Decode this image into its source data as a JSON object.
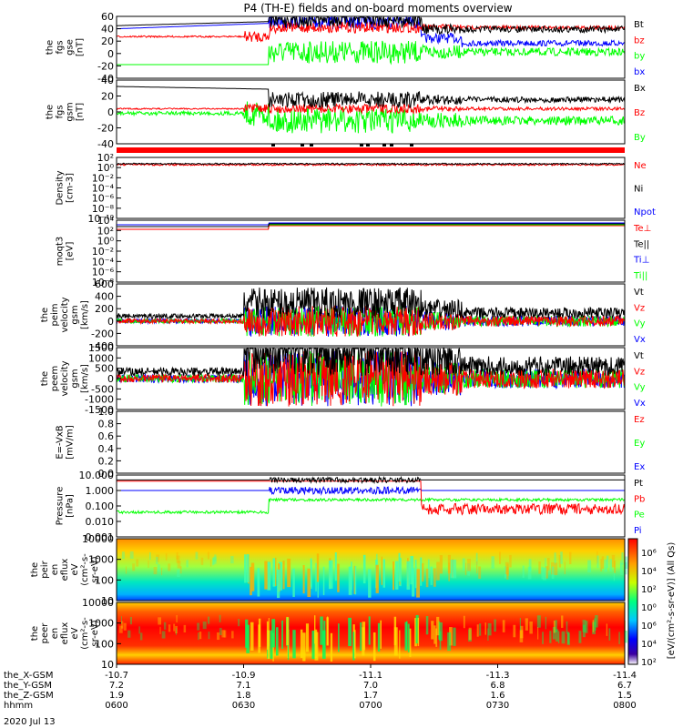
{
  "title": "P4 (TH-E) fields and on-board moments overview",
  "date": "2020 Jul 13",
  "colors": {
    "black": "#000000",
    "red": "#ff0000",
    "green": "#00ff00",
    "blue": "#0000ff"
  },
  "chart_data": [
    {
      "id": "fgs_gse",
      "type": "line",
      "ylabel": [
        "the",
        "fgs",
        "gse",
        "[nT]"
      ],
      "ylim": [
        -40,
        60
      ],
      "yticks": [
        "60",
        "40",
        "20",
        "0",
        "-20",
        "-40"
      ],
      "series": [
        {
          "name": "Bt",
          "color": "black"
        },
        {
          "name": "bz",
          "color": "red"
        },
        {
          "name": "by",
          "color": "green"
        },
        {
          "name": "bx",
          "color": "blue"
        }
      ]
    },
    {
      "id": "fgs_gsm",
      "type": "line",
      "ylabel": [
        "the",
        "fgs",
        "gsm",
        "[nT]"
      ],
      "ylim": [
        -50,
        40
      ],
      "yticks": [
        "40",
        "20",
        "0",
        "-20",
        "-40"
      ],
      "series": [
        {
          "name": "Bx",
          "color": "black"
        },
        {
          "name": "Bz",
          "color": "red"
        },
        {
          "name": "By",
          "color": "green"
        }
      ]
    },
    {
      "id": "density",
      "type": "line",
      "ylabel": [
        "Density",
        "[cm-3]"
      ],
      "log": true,
      "yticks": [
        "10²",
        "10⁰",
        "10⁻²",
        "10⁻⁴",
        "10⁻⁶",
        "10⁻⁸",
        "10⁻¹⁰"
      ],
      "series": [
        {
          "name": "Ne",
          "color": "red"
        },
        {
          "name": "Ni",
          "color": "black"
        },
        {
          "name": "Npot",
          "color": "blue"
        }
      ]
    },
    {
      "id": "temp",
      "type": "line",
      "ylabel": [
        "moqt3",
        "[eV]"
      ],
      "log": true,
      "yticks": [
        "10⁴",
        "10²",
        "10⁰",
        "10⁻²",
        "10⁻⁴",
        "10⁻⁶",
        "10⁻⁸"
      ],
      "series": [
        {
          "name": "Te⊥",
          "color": "red"
        },
        {
          "name": "Te||",
          "color": "black"
        },
        {
          "name": "Ti⊥",
          "color": "blue"
        },
        {
          "name": "Ti||",
          "color": "green"
        }
      ]
    },
    {
      "id": "peim",
      "type": "line",
      "ylabel": [
        "the",
        "peim",
        "velocity",
        "gsm",
        "[km/s]"
      ],
      "ylim": [
        -400,
        600
      ],
      "yticks": [
        "600",
        "400",
        "200",
        "0",
        "-200",
        "-400"
      ],
      "series": [
        {
          "name": "Vt",
          "color": "black"
        },
        {
          "name": "Vz",
          "color": "red"
        },
        {
          "name": "Vy",
          "color": "green"
        },
        {
          "name": "Vx",
          "color": "blue"
        }
      ]
    },
    {
      "id": "peem",
      "type": "line",
      "ylabel": [
        "the",
        "peem",
        "velocity",
        "gsm",
        "[km/s]"
      ],
      "ylim": [
        -1500,
        1500
      ],
      "yticks": [
        "1500",
        "1000",
        "500",
        "0",
        "-500",
        "-1000",
        "-1500"
      ],
      "series": [
        {
          "name": "Vt",
          "color": "black"
        },
        {
          "name": "Vz",
          "color": "red"
        },
        {
          "name": "Vy",
          "color": "green"
        },
        {
          "name": "Vx",
          "color": "blue"
        }
      ]
    },
    {
      "id": "efield",
      "type": "line",
      "ylabel": [
        "E=-VxB",
        "[mV/m]"
      ],
      "ylim": [
        0,
        1
      ],
      "yticks": [
        "1.0",
        "0.8",
        "0.6",
        "0.4",
        "0.2",
        "0.0"
      ],
      "series": [
        {
          "name": "Ez",
          "color": "red"
        },
        {
          "name": "Ey",
          "color": "green"
        },
        {
          "name": "Ex",
          "color": "blue"
        }
      ]
    },
    {
      "id": "pressure",
      "type": "line",
      "ylabel": [
        "Pressure",
        "[nPa]"
      ],
      "log": true,
      "yticks": [
        "10.000",
        "1.000",
        "0.100",
        "0.010",
        "0.001"
      ],
      "series": [
        {
          "name": "Pt",
          "color": "black"
        },
        {
          "name": "Pb",
          "color": "red"
        },
        {
          "name": "Pe",
          "color": "green"
        },
        {
          "name": "Pi",
          "color": "blue"
        }
      ]
    },
    {
      "id": "peir",
      "type": "heatmap",
      "ylabel": [
        "the",
        "peir",
        "en",
        "eflux",
        "eV",
        "(cm²-s-",
        "sr-eV)"
      ],
      "yticks": [
        "10000",
        "1000",
        "100",
        "10"
      ]
    },
    {
      "id": "peer",
      "type": "heatmap",
      "ylabel": [
        "the",
        "peer",
        "en",
        "eflux",
        "eV",
        "(cm²-s-",
        "sr-eV)"
      ],
      "yticks": [
        "10000",
        "1000",
        "100",
        "10"
      ]
    }
  ],
  "colorbar": {
    "label": "[eV/(cm²-s-sr-eV)] (All Qs)",
    "ticks": [
      "10⁶",
      "10⁴",
      "10²",
      "10⁰",
      "10⁶",
      "10⁴",
      "10²"
    ]
  },
  "xaxis": {
    "row_labels": [
      "the_X-GSM",
      "the_Y-GSM",
      "the_Z-GSM",
      "hhmm"
    ],
    "columns": [
      {
        "x": "-10.7",
        "y": "7.2",
        "z": "1.9",
        "t": "0600"
      },
      {
        "x": "-10.9",
        "y": "7.1",
        "z": "1.8",
        "t": "0630"
      },
      {
        "x": "-11.1",
        "y": "7.0",
        "z": "1.7",
        "t": "0700"
      },
      {
        "x": "-11.3",
        "y": "6.8",
        "z": "1.6",
        "t": "0730"
      },
      {
        "x": "-11.4",
        "y": "6.7",
        "z": "1.5",
        "t": "0800"
      }
    ]
  }
}
